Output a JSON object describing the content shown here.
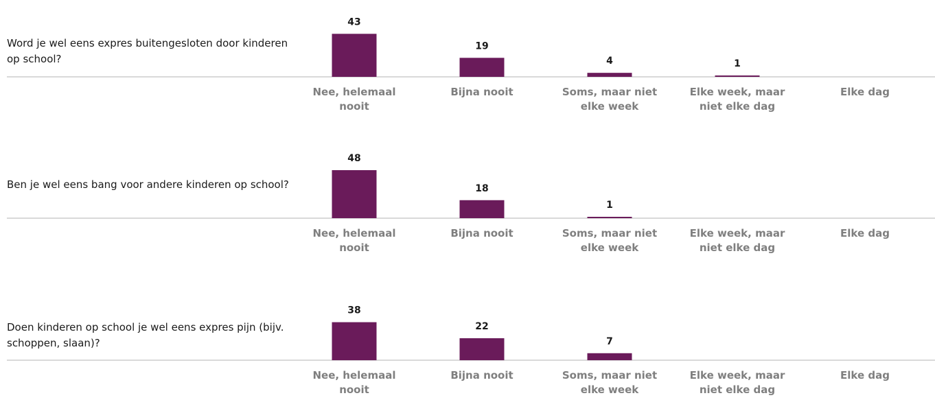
{
  "colors": {
    "bar": "#6a1b5a",
    "axis": "#d9d9d9",
    "category_label": "#7f7f7f",
    "value_label": "#1a1a1a"
  },
  "chart_data": [
    {
      "type": "bar",
      "question": "Word je wel eens expres buitengesloten door kinderen op school?",
      "categories": [
        "Nee, helemaal nooit",
        "Bijna nooit",
        "Soms, maar niet elke week",
        "Elke week, maar niet elke dag",
        "Elke dag"
      ],
      "values": [
        43,
        19,
        4,
        1,
        0
      ],
      "data_labels": [
        "43",
        "19",
        "4",
        "1",
        ""
      ],
      "ylim": [
        0,
        48
      ],
      "grid": false
    },
    {
      "type": "bar",
      "question": "Ben je wel eens bang voor andere kinderen op school?",
      "categories": [
        "Nee, helemaal nooit",
        "Bijna nooit",
        "Soms, maar niet elke week",
        "Elke week, maar niet elke dag",
        "Elke dag"
      ],
      "values": [
        48,
        18,
        1,
        0,
        0
      ],
      "data_labels": [
        "48",
        "18",
        "1",
        "",
        ""
      ],
      "ylim": [
        0,
        48
      ],
      "grid": false
    },
    {
      "type": "bar",
      "question": "Doen kinderen op school je wel eens expres pijn (bijv. schoppen, slaan)?",
      "categories": [
        "Nee, helemaal nooit",
        "Bijna nooit",
        "Soms, maar niet elke week",
        "Elke week, maar niet elke dag",
        "Elke dag"
      ],
      "values": [
        38,
        22,
        7,
        0,
        0
      ],
      "data_labels": [
        "38",
        "22",
        "7",
        "",
        ""
      ],
      "ylim": [
        0,
        48
      ],
      "grid": false
    }
  ]
}
